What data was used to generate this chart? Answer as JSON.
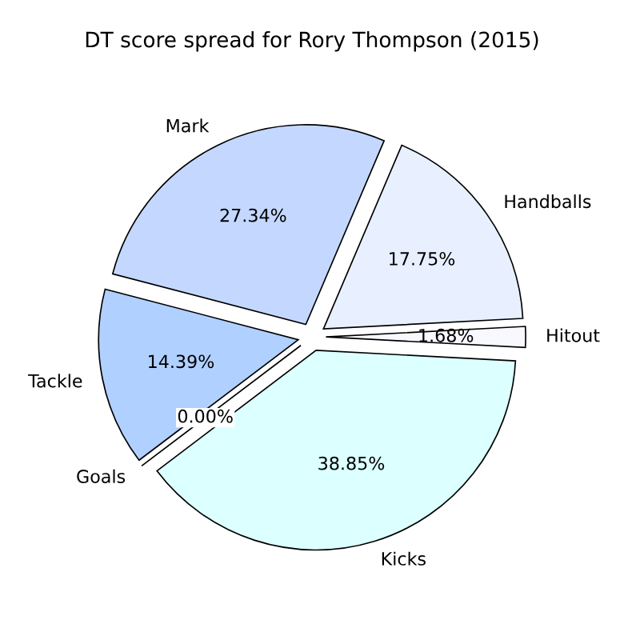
{
  "chart_data": {
    "type": "pie",
    "title": "DT score spread for Rory Thompson (2015)",
    "categories": [
      "Hitout",
      "Handballs",
      "Mark",
      "Tackle",
      "Goals",
      "Kicks"
    ],
    "values": [
      1.68,
      17.75,
      27.34,
      14.39,
      0.0,
      38.85
    ],
    "value_labels": [
      "1.68%",
      "17.75%",
      "27.34%",
      "14.39%",
      "0.00%",
      "38.85%"
    ],
    "colors": [
      "#f8f8ff",
      "#e8f0ff",
      "#c4d8ff",
      "#b0d0ff",
      "#c0d8ff",
      "#dcffff"
    ],
    "legend": false
  }
}
